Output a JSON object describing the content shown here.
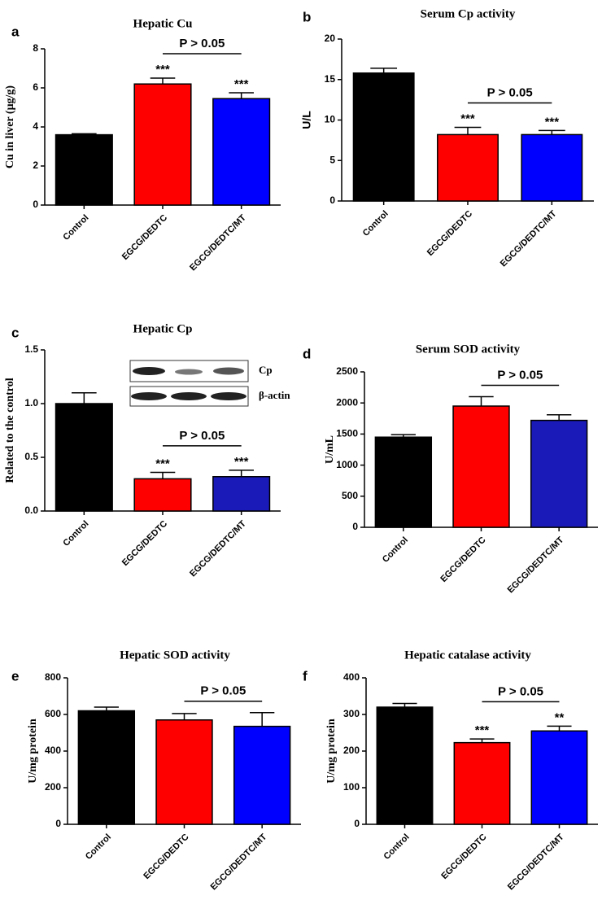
{
  "chart_data": [
    {
      "type": "bar",
      "label": "a",
      "title": "Hepatic Cu",
      "y_label": "Cu in liver (μg/g)",
      "categories": [
        "Control",
        "EGCG/DEDTC",
        "EGCG/DEDTC/MT"
      ],
      "values": [
        3.6,
        6.2,
        5.45
      ],
      "errors": [
        0.05,
        0.3,
        0.3
      ],
      "colors": [
        "#000000",
        "#ff0000",
        "#0000ff"
      ],
      "significance": [
        null,
        "***",
        "***"
      ],
      "annotation": "P > 0.05",
      "ylim": [
        0,
        8
      ],
      "yticks": [
        0,
        2,
        4,
        6,
        8
      ]
    },
    {
      "type": "bar",
      "label": "b",
      "title": "Serum Cp activity",
      "y_label": "U/L",
      "categories": [
        "Control",
        "EGCG/DEDTC",
        "EGCG/DEDTC/MT"
      ],
      "values": [
        15.8,
        8.2,
        8.2
      ],
      "errors": [
        0.6,
        0.9,
        0.5
      ],
      "colors": [
        "#000000",
        "#ff0000",
        "#0000ff"
      ],
      "significance": [
        null,
        "***",
        "***"
      ],
      "annotation": "P > 0.05",
      "ylim": [
        0,
        20
      ],
      "yticks": [
        0,
        5,
        10,
        15,
        20
      ]
    },
    {
      "type": "bar",
      "label": "c",
      "title": "Hepatic Cp",
      "y_label": "Related to the control",
      "categories": [
        "Control",
        "EGCG/DEDTC",
        "EGCG/DEDTC/MT"
      ],
      "values": [
        1.0,
        0.3,
        0.32
      ],
      "errors": [
        0.1,
        0.06,
        0.06
      ],
      "colors": [
        "#000000",
        "#ff0000",
        "#1a1ab8"
      ],
      "significance": [
        null,
        "***",
        "***"
      ],
      "annotation": "P > 0.05",
      "blot_labels": [
        "Cp",
        "β-actin"
      ],
      "ylim": [
        0,
        1.5
      ],
      "yticks": [
        {
          "value": 0,
          "label": "0.0"
        },
        {
          "value": 0.5,
          "label": "0.5"
        },
        {
          "value": 1,
          "label": "1.0"
        },
        {
          "value": 1.5,
          "label": "1.5"
        }
      ]
    },
    {
      "type": "bar",
      "label": "d",
      "title": "Serum SOD activity",
      "y_label": "U/mL",
      "categories": [
        "Control",
        "EGCG/DEDTC",
        "EGCG/DEDTC/MT"
      ],
      "values": [
        1450,
        1950,
        1720
      ],
      "errors": [
        40,
        150,
        90
      ],
      "colors": [
        "#000000",
        "#ff0000",
        "#1a1ab8"
      ],
      "significance": [
        null,
        null,
        null
      ],
      "annotation": "P > 0.05",
      "ylim": [
        0,
        2500
      ],
      "yticks": [
        0,
        500,
        1000,
        1500,
        2000,
        2500
      ]
    },
    {
      "type": "bar",
      "label": "e",
      "title": "Hepatic SOD activity",
      "y_label": "U/mg protein",
      "categories": [
        "Control",
        "EGCG/DEDTC",
        "EGCG/DEDTC/MT"
      ],
      "values": [
        620,
        570,
        535
      ],
      "errors": [
        20,
        35,
        75
      ],
      "colors": [
        "#000000",
        "#ff0000",
        "#0000ff"
      ],
      "significance": [
        null,
        null,
        null
      ],
      "annotation": "P > 0.05",
      "ylim": [
        0,
        800
      ],
      "yticks": [
        0,
        200,
        400,
        600,
        800
      ]
    },
    {
      "type": "bar",
      "label": "f",
      "title": "Hepatic catalase activity",
      "y_label": "U/mg protein",
      "categories": [
        "Control",
        "EGCG/DEDTC",
        "EGCG/DEDTC/MT"
      ],
      "values": [
        320,
        223,
        255
      ],
      "errors": [
        10,
        10,
        13
      ],
      "colors": [
        "#000000",
        "#ff0000",
        "#0000ff"
      ],
      "significance": [
        null,
        "***",
        "**"
      ],
      "annotation": "P > 0.05",
      "ylim": [
        0,
        400
      ],
      "yticks": [
        0,
        100,
        200,
        300,
        400
      ]
    }
  ]
}
